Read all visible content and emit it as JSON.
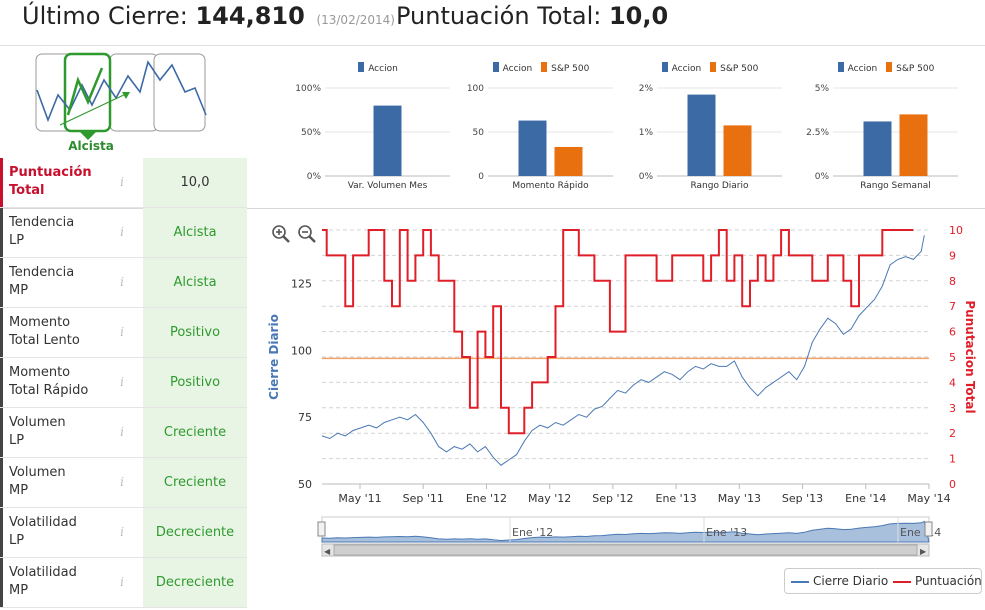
{
  "header": {
    "cierre_label": "Último Cierre:",
    "cierre_value": "144,810",
    "cierre_date": "(13/02/2014)",
    "puntuacion_label": "Puntuación Total:",
    "puntuacion_value": "10,0"
  },
  "trend": {
    "label": "Alcista"
  },
  "colors": {
    "accion": "#3c6aa5",
    "sp500": "#e8700f",
    "cierre": "#4a78b4",
    "puntuacion": "#e01e28",
    "reference": "#f5a26a",
    "green_text": "#2e9a2e",
    "green_bg": "#e8f5e4"
  },
  "rows": [
    {
      "label1": "Puntuación",
      "label2": "Total",
      "value": "10,0",
      "info": "i"
    },
    {
      "label1": "Tendencia",
      "label2": "LP",
      "value": "Alcista",
      "info": "i"
    },
    {
      "label1": "Tendencia",
      "label2": "MP",
      "value": "Alcista",
      "info": "i"
    },
    {
      "label1": "Momento",
      "label2": "Total Lento",
      "value": "Positivo",
      "info": "i"
    },
    {
      "label1": "Momento",
      "label2": "Total Rápido",
      "value": "Positivo",
      "info": "i"
    },
    {
      "label1": "Volumen",
      "label2": "LP",
      "value": "Creciente",
      "info": "i"
    },
    {
      "label1": "Volumen",
      "label2": "MP",
      "value": "Creciente",
      "info": "i"
    },
    {
      "label1": "Volatilidad",
      "label2": "LP",
      "value": "Decreciente",
      "info": "i"
    },
    {
      "label1": "Volatilidad",
      "label2": "MP",
      "value": "Decreciente",
      "info": "i"
    }
  ],
  "chart_data": [
    {
      "type": "bar",
      "title": "Var. Volumen Mes",
      "series": [
        {
          "name": "Accion",
          "values": [
            80
          ]
        }
      ],
      "yticks": [
        "0%",
        "50%",
        "100%"
      ],
      "ylim": [
        0,
        100
      ]
    },
    {
      "type": "bar",
      "title": "Momento Rápido",
      "series": [
        {
          "name": "Accion",
          "values": [
            63
          ]
        },
        {
          "name": "S&P 500",
          "values": [
            33
          ]
        }
      ],
      "yticks": [
        "0",
        "50",
        "100"
      ],
      "ylim": [
        0,
        100
      ]
    },
    {
      "type": "bar",
      "title": "Rango Diario",
      "series": [
        {
          "name": "Accion",
          "values": [
            1.85
          ]
        },
        {
          "name": "S&P 500",
          "values": [
            1.15
          ]
        }
      ],
      "yticks": [
        "0%",
        "1%",
        "2%"
      ],
      "ylim": [
        0,
        2
      ]
    },
    {
      "type": "bar",
      "title": "Rango Semanal",
      "series": [
        {
          "name": "Accion",
          "values": [
            3.1
          ]
        },
        {
          "name": "S&P 500",
          "values": [
            3.5
          ]
        }
      ],
      "yticks": [
        "0%",
        "2.5%",
        "5%"
      ],
      "ylim": [
        0,
        5
      ]
    },
    {
      "type": "line",
      "xlabels": [
        "May '11",
        "Sep '11",
        "Ene '12",
        "May '12",
        "Sep '12",
        "Ene '13",
        "May '13",
        "Sep '13",
        "Ene '14",
        "May '14"
      ],
      "navigator_labels": [
        "Ene '12",
        "Ene '13",
        "Ene '14"
      ],
      "ylabel_left": "Cierre Diario",
      "ylabel_right": "Punutacion Total",
      "yticks_left": [
        "50",
        "75",
        "100",
        "125"
      ],
      "yticks_right": [
        "0",
        "1",
        "2",
        "3",
        "4",
        "5",
        "6",
        "7",
        "8",
        "9",
        "10"
      ],
      "ylim_left": [
        50,
        145
      ],
      "ylim_right": [
        0,
        10
      ],
      "xlim": [
        0,
        39
      ],
      "reference_line": 97,
      "legend": [
        "Cierre Diario",
        "Puntuación"
      ],
      "series": [
        {
          "name": "Cierre Diario",
          "points": [
            [
              0,
              68
            ],
            [
              0.5,
              67
            ],
            [
              1,
              69
            ],
            [
              1.5,
              68
            ],
            [
              2,
              70
            ],
            [
              2.5,
              71
            ],
            [
              3,
              72
            ],
            [
              3.5,
              71
            ],
            [
              4,
              73
            ],
            [
              4.5,
              74
            ],
            [
              5,
              75
            ],
            [
              5.5,
              74
            ],
            [
              6,
              76
            ],
            [
              6.5,
              73
            ],
            [
              7,
              69
            ],
            [
              7.5,
              64
            ],
            [
              8,
              62
            ],
            [
              8.5,
              64
            ],
            [
              9,
              63
            ],
            [
              9.5,
              65
            ],
            [
              10,
              62
            ],
            [
              10.5,
              64
            ],
            [
              11,
              60
            ],
            [
              11.5,
              57
            ],
            [
              12,
              59
            ],
            [
              12.5,
              61
            ],
            [
              13,
              66
            ],
            [
              13.5,
              70
            ],
            [
              14,
              72
            ],
            [
              14.5,
              71
            ],
            [
              15,
              73
            ],
            [
              15.5,
              72
            ],
            [
              16,
              74
            ],
            [
              16.5,
              76
            ],
            [
              17,
              75
            ],
            [
              17.5,
              78
            ],
            [
              18,
              79
            ],
            [
              18.5,
              82
            ],
            [
              19,
              85
            ],
            [
              19.5,
              84
            ],
            [
              20,
              87
            ],
            [
              20.5,
              89
            ],
            [
              21,
              88
            ],
            [
              21.5,
              90
            ],
            [
              22,
              92
            ],
            [
              22.5,
              91
            ],
            [
              23,
              89
            ],
            [
              23.5,
              92
            ],
            [
              24,
              94
            ],
            [
              24.5,
              93
            ],
            [
              25,
              95
            ],
            [
              25.5,
              94
            ],
            [
              26,
              94
            ],
            [
              26.5,
              96
            ],
            [
              27,
              90
            ],
            [
              27.5,
              86
            ],
            [
              28,
              83
            ],
            [
              28.5,
              86
            ],
            [
              29,
              88
            ],
            [
              29.5,
              90
            ],
            [
              30,
              92
            ],
            [
              30.5,
              89
            ],
            [
              31,
              94
            ],
            [
              31.5,
              103
            ],
            [
              32,
              108
            ],
            [
              32.5,
              112
            ],
            [
              33,
              110
            ],
            [
              33.5,
              106
            ],
            [
              34,
              108
            ],
            [
              34.5,
              113
            ],
            [
              35,
              116
            ],
            [
              35.5,
              119
            ],
            [
              36,
              124
            ],
            [
              36.5,
              132
            ],
            [
              37,
              134
            ],
            [
              37.5,
              135
            ],
            [
              38,
              134
            ],
            [
              38.5,
              137
            ],
            [
              38.7,
              143
            ]
          ]
        },
        {
          "name": "Puntuación",
          "steps": [
            [
              0,
              10
            ],
            [
              0.3,
              9
            ],
            [
              1.5,
              7
            ],
            [
              2,
              9
            ],
            [
              3,
              10
            ],
            [
              4,
              8
            ],
            [
              4.5,
              7
            ],
            [
              5,
              10
            ],
            [
              5.5,
              8
            ],
            [
              6,
              9
            ],
            [
              6.5,
              10
            ],
            [
              7,
              9
            ],
            [
              7.5,
              8
            ],
            [
              8,
              8
            ],
            [
              8.5,
              6
            ],
            [
              9,
              5
            ],
            [
              9.5,
              3
            ],
            [
              10,
              6
            ],
            [
              10.5,
              5
            ],
            [
              11,
              7
            ],
            [
              11.5,
              3
            ],
            [
              12,
              2
            ],
            [
              12.5,
              2
            ],
            [
              13,
              3
            ],
            [
              13.5,
              4
            ],
            [
              14,
              4
            ],
            [
              14.5,
              5
            ],
            [
              15,
              7
            ],
            [
              15.5,
              10
            ],
            [
              16,
              10
            ],
            [
              16.5,
              9
            ],
            [
              17,
              9
            ],
            [
              17.5,
              8
            ],
            [
              18,
              8
            ],
            [
              18.5,
              6
            ],
            [
              19,
              6
            ],
            [
              19.5,
              9
            ],
            [
              20,
              9
            ],
            [
              20.5,
              9
            ],
            [
              21,
              9
            ],
            [
              21.5,
              8
            ],
            [
              22,
              8
            ],
            [
              22.5,
              9
            ],
            [
              23,
              9
            ],
            [
              23.5,
              9
            ],
            [
              24,
              9
            ],
            [
              24.5,
              8
            ],
            [
              25,
              9
            ],
            [
              25.5,
              10
            ],
            [
              26,
              8
            ],
            [
              26.5,
              9
            ],
            [
              27,
              7
            ],
            [
              27.5,
              8
            ],
            [
              28,
              9
            ],
            [
              28.5,
              8
            ],
            [
              29,
              9
            ],
            [
              29.5,
              10
            ],
            [
              30,
              9
            ],
            [
              30.5,
              9
            ],
            [
              31,
              9
            ],
            [
              31.5,
              8
            ],
            [
              32,
              8
            ],
            [
              32.5,
              9
            ],
            [
              33,
              9
            ],
            [
              33.5,
              8
            ],
            [
              34,
              7
            ],
            [
              34.5,
              9
            ],
            [
              35,
              9
            ],
            [
              35.5,
              9
            ],
            [
              36,
              10
            ],
            [
              36.5,
              10
            ],
            [
              37,
              10
            ],
            [
              38,
              10
            ]
          ]
        }
      ]
    }
  ]
}
